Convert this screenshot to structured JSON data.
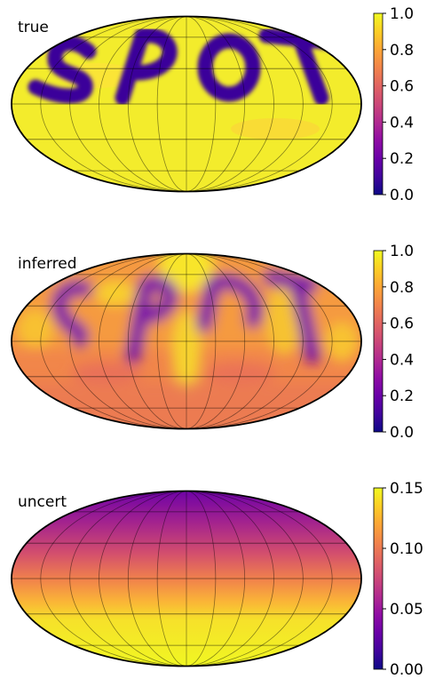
{
  "chart_data": [
    {
      "type": "heatmap",
      "projection": "mollweide",
      "title": "true",
      "colormap": "plasma",
      "clim": [
        0.0,
        1.0
      ],
      "colorbar_ticks": [
        "0.0",
        "0.2",
        "0.4",
        "0.6",
        "0.8",
        "1.0"
      ],
      "pattern": "letters",
      "text_shown": "SPOT",
      "background_value": 1.0,
      "letter_value": 0.05,
      "grid": true
    },
    {
      "type": "heatmap",
      "projection": "mollweide",
      "title": "inferred",
      "colormap": "plasma",
      "clim": [
        0.0,
        1.0
      ],
      "colorbar_ticks": [
        "0.0",
        "0.2",
        "0.4",
        "0.6",
        "0.8",
        "1.0"
      ],
      "pattern": "blurred-letters",
      "northern_value": 0.9,
      "southern_value": 0.65,
      "letter_value": 0.25,
      "grid": true
    },
    {
      "type": "heatmap",
      "projection": "mollweide",
      "title": "uncert",
      "colormap": "plasma",
      "clim": [
        0.0,
        0.15
      ],
      "colorbar_ticks": [
        "0.00",
        "0.05",
        "0.10",
        "0.15"
      ],
      "pattern": "latitude-gradient",
      "north_pole_value": 0.03,
      "south_value": 0.15,
      "grid": true
    }
  ]
}
